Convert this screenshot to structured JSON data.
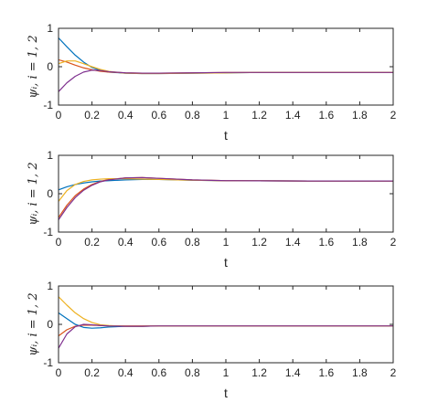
{
  "chart_data": [
    {
      "type": "line",
      "xlabel": "t",
      "ylabel": "ψᵢ, i = 1, 2",
      "xlim": [
        0,
        2
      ],
      "ylim": [
        -1,
        1
      ],
      "xticks": [
        "0",
        "0.2",
        "0.4",
        "0.6",
        "0.8",
        "1",
        "1.2",
        "1.4",
        "1.6",
        "1.8",
        "2"
      ],
      "yticks": [
        "-1",
        "0",
        "1"
      ],
      "grid": false,
      "series": [
        {
          "color": "#0072BD",
          "x": [
            0,
            0.05,
            0.1,
            0.15,
            0.2,
            0.25,
            0.3,
            0.4,
            0.5,
            0.6,
            0.8,
            1.0,
            1.2,
            1.5,
            2.0
          ],
          "y": [
            0.75,
            0.52,
            0.3,
            0.12,
            -0.02,
            -0.1,
            -0.14,
            -0.17,
            -0.18,
            -0.18,
            -0.17,
            -0.16,
            -0.15,
            -0.15,
            -0.15
          ]
        },
        {
          "color": "#D95319",
          "x": [
            0,
            0.05,
            0.1,
            0.15,
            0.2,
            0.25,
            0.3,
            0.4,
            0.5,
            0.6,
            0.8,
            1.0,
            1.2,
            1.5,
            2.0
          ],
          "y": [
            0.18,
            0.12,
            0.04,
            -0.03,
            -0.08,
            -0.12,
            -0.14,
            -0.16,
            -0.17,
            -0.17,
            -0.16,
            -0.15,
            -0.15,
            -0.15,
            -0.15
          ]
        },
        {
          "color": "#EDB120",
          "x": [
            0,
            0.05,
            0.1,
            0.15,
            0.2,
            0.25,
            0.3,
            0.4,
            0.5,
            0.6,
            0.8,
            1.0,
            1.2,
            1.5,
            2.0
          ],
          "y": [
            0.08,
            0.15,
            0.15,
            0.08,
            0.0,
            -0.07,
            -0.12,
            -0.17,
            -0.18,
            -0.18,
            -0.17,
            -0.16,
            -0.15,
            -0.15,
            -0.15
          ]
        },
        {
          "color": "#7E2F8E",
          "x": [
            0,
            0.05,
            0.1,
            0.15,
            0.2,
            0.25,
            0.3,
            0.4,
            0.5,
            0.6,
            0.8,
            1.0,
            1.2,
            1.5,
            2.0
          ],
          "y": [
            -0.65,
            -0.42,
            -0.25,
            -0.14,
            -0.09,
            -0.1,
            -0.13,
            -0.16,
            -0.17,
            -0.17,
            -0.16,
            -0.15,
            -0.15,
            -0.15,
            -0.15
          ]
        }
      ]
    },
    {
      "type": "line",
      "xlabel": "t",
      "ylabel": "ψᵢ, i = 1, 2",
      "xlim": [
        0,
        2
      ],
      "ylim": [
        -1,
        1
      ],
      "xticks": [
        "0",
        "0.2",
        "0.4",
        "0.6",
        "0.8",
        "1",
        "1.2",
        "1.4",
        "1.6",
        "1.8",
        "2"
      ],
      "yticks": [
        "-1",
        "0",
        "1"
      ],
      "grid": false,
      "series": [
        {
          "color": "#0072BD",
          "x": [
            0,
            0.05,
            0.1,
            0.15,
            0.2,
            0.25,
            0.3,
            0.4,
            0.5,
            0.6,
            0.8,
            1.0,
            1.5,
            2.0
          ],
          "y": [
            0.1,
            0.18,
            0.24,
            0.28,
            0.31,
            0.33,
            0.34,
            0.36,
            0.37,
            0.37,
            0.35,
            0.34,
            0.33,
            0.33
          ]
        },
        {
          "color": "#D95319",
          "x": [
            0,
            0.05,
            0.1,
            0.15,
            0.2,
            0.25,
            0.3,
            0.4,
            0.5,
            0.6,
            0.8,
            1.0,
            1.5,
            2.0
          ],
          "y": [
            -0.62,
            -0.3,
            -0.05,
            0.12,
            0.24,
            0.32,
            0.37,
            0.41,
            0.42,
            0.4,
            0.36,
            0.34,
            0.33,
            0.33
          ]
        },
        {
          "color": "#EDB120",
          "x": [
            0,
            0.05,
            0.1,
            0.15,
            0.2,
            0.25,
            0.3,
            0.4,
            0.5,
            0.6,
            0.8,
            1.0,
            1.5,
            2.0
          ],
          "y": [
            -0.2,
            0.08,
            0.24,
            0.32,
            0.36,
            0.38,
            0.39,
            0.39,
            0.38,
            0.37,
            0.35,
            0.34,
            0.33,
            0.33
          ]
        },
        {
          "color": "#7E2F8E",
          "x": [
            0,
            0.05,
            0.1,
            0.15,
            0.2,
            0.25,
            0.3,
            0.4,
            0.5,
            0.6,
            0.8,
            1.0,
            1.5,
            2.0
          ],
          "y": [
            -0.68,
            -0.36,
            -0.1,
            0.09,
            0.22,
            0.31,
            0.36,
            0.41,
            0.42,
            0.4,
            0.36,
            0.34,
            0.33,
            0.33
          ]
        }
      ]
    },
    {
      "type": "line",
      "xlabel": "t",
      "ylabel": "ψᵢ, i = 1, 2",
      "xlim": [
        0,
        2
      ],
      "ylim": [
        -1,
        1
      ],
      "xticks": [
        "0",
        "0.2",
        "0.4",
        "0.6",
        "0.8",
        "1",
        "1.2",
        "1.4",
        "1.6",
        "1.8",
        "2"
      ],
      "yticks": [
        "-1",
        "0",
        "1"
      ],
      "grid": false,
      "series": [
        {
          "color": "#0072BD",
          "x": [
            0,
            0.05,
            0.1,
            0.15,
            0.2,
            0.25,
            0.3,
            0.4,
            0.5,
            0.6,
            0.8,
            1.0,
            1.5,
            2.0
          ],
          "y": [
            0.3,
            0.15,
            0.0,
            -0.08,
            -0.1,
            -0.09,
            -0.07,
            -0.05,
            -0.05,
            -0.04,
            -0.04,
            -0.04,
            -0.04,
            -0.04
          ]
        },
        {
          "color": "#D95319",
          "x": [
            0,
            0.05,
            0.1,
            0.15,
            0.2,
            0.25,
            0.3,
            0.4,
            0.5,
            0.6,
            0.8,
            1.0,
            1.5,
            2.0
          ],
          "y": [
            -0.3,
            -0.14,
            -0.05,
            -0.02,
            -0.02,
            -0.03,
            -0.04,
            -0.04,
            -0.04,
            -0.04,
            -0.04,
            -0.04,
            -0.04,
            -0.04
          ]
        },
        {
          "color": "#EDB120",
          "x": [
            0,
            0.05,
            0.1,
            0.15,
            0.2,
            0.25,
            0.3,
            0.4,
            0.5,
            0.6,
            0.8,
            1.0,
            1.5,
            2.0
          ],
          "y": [
            0.72,
            0.5,
            0.3,
            0.15,
            0.05,
            -0.01,
            -0.03,
            -0.05,
            -0.05,
            -0.04,
            -0.04,
            -0.04,
            -0.04,
            -0.04
          ]
        },
        {
          "color": "#7E2F8E",
          "x": [
            0,
            0.05,
            0.1,
            0.15,
            0.2,
            0.25,
            0.3,
            0.4,
            0.5,
            0.6,
            0.8,
            1.0,
            1.5,
            2.0
          ],
          "y": [
            -0.62,
            -0.25,
            -0.06,
            0.0,
            -0.01,
            -0.03,
            -0.04,
            -0.05,
            -0.05,
            -0.04,
            -0.04,
            -0.04,
            -0.04,
            -0.04
          ]
        }
      ]
    }
  ]
}
